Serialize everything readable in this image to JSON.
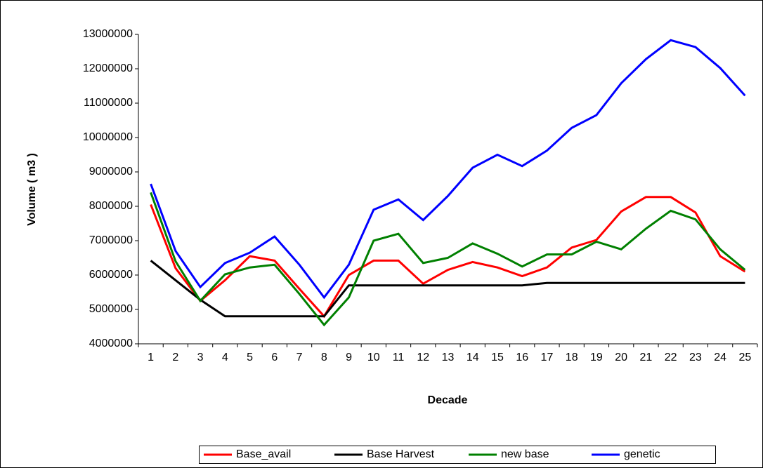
{
  "chart_data": {
    "type": "line",
    "x_label": "Decade",
    "y_label": "Volume ( m3 )",
    "categories": [
      "1",
      "2",
      "3",
      "4",
      "5",
      "6",
      "7",
      "8",
      "9",
      "10",
      "11",
      "12",
      "13",
      "14",
      "15",
      "16",
      "17",
      "18",
      "19",
      "20",
      "21",
      "22",
      "23",
      "24",
      "25"
    ],
    "ylim": [
      4000000,
      13000000
    ],
    "yticks": [
      4000000,
      5000000,
      6000000,
      7000000,
      8000000,
      9000000,
      10000000,
      11000000,
      12000000,
      13000000
    ],
    "legend": "bottom",
    "series": [
      {
        "name": "Base_avail",
        "color": "#ff0000",
        "values": [
          8050000,
          6200000,
          5250000,
          5850000,
          6550000,
          6420000,
          5600000,
          4800000,
          6000000,
          6420000,
          6420000,
          5750000,
          6150000,
          6380000,
          6220000,
          5970000,
          6220000,
          6800000,
          7020000,
          7850000,
          8270000,
          8270000,
          7820000,
          6550000,
          6100000
        ]
      },
      {
        "name": "Base Harvest",
        "color": "#000000",
        "values": [
          6420000,
          5850000,
          5280000,
          4800000,
          4800000,
          4800000,
          4800000,
          4800000,
          5700000,
          5700000,
          5700000,
          5700000,
          5700000,
          5700000,
          5700000,
          5700000,
          5770000,
          5770000,
          5770000,
          5770000,
          5770000,
          5770000,
          5770000,
          5770000,
          5770000
        ]
      },
      {
        "name": "new base",
        "color": "#008000",
        "values": [
          8400000,
          6400000,
          5250000,
          6020000,
          6220000,
          6300000,
          5450000,
          4550000,
          5350000,
          7000000,
          7200000,
          6350000,
          6500000,
          6920000,
          6620000,
          6250000,
          6600000,
          6600000,
          6970000,
          6750000,
          7350000,
          7870000,
          7620000,
          6750000,
          6150000
        ]
      },
      {
        "name": "genetic",
        "color": "#0000ff",
        "values": [
          8650000,
          6700000,
          5650000,
          6350000,
          6650000,
          7120000,
          6300000,
          5350000,
          6300000,
          7900000,
          8200000,
          7600000,
          8300000,
          9120000,
          9500000,
          9170000,
          9620000,
          10280000,
          10650000,
          11580000,
          12280000,
          12830000,
          12630000,
          12020000,
          11220000
        ]
      }
    ]
  }
}
